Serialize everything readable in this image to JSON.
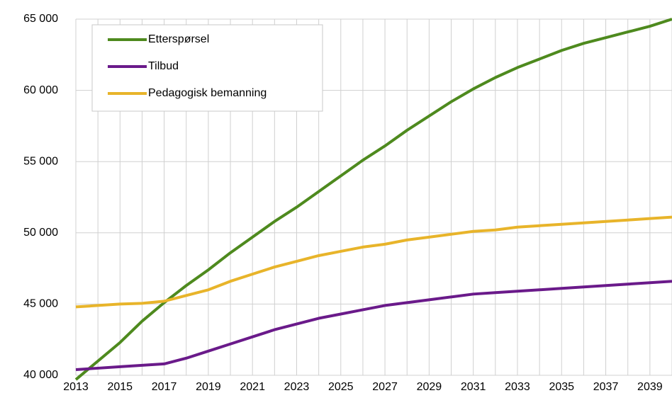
{
  "chart_data": {
    "type": "line",
    "categories": [
      "2013",
      null,
      "2015",
      null,
      "2017",
      null,
      "2019",
      null,
      "2021",
      null,
      "2023",
      null,
      "2025",
      null,
      "2027",
      null,
      "2029",
      null,
      "2031",
      null,
      "2033",
      null,
      "2035",
      null,
      "2037",
      null,
      "2039",
      null
    ],
    "series": [
      {
        "name": "Etterspørsel",
        "color": "#4e8a1e",
        "values": [
          39700,
          41000,
          42300,
          43800,
          45100,
          46300,
          47400,
          48600,
          49700,
          50800,
          51800,
          52900,
          54000,
          55100,
          56100,
          57200,
          58200,
          59200,
          60100,
          60900,
          61600,
          62200,
          62800,
          63300,
          63700,
          64100,
          64500,
          65000
        ]
      },
      {
        "name": "Tilbud",
        "color": "#6a1a8a",
        "values": [
          40400,
          40500,
          40600,
          40700,
          40800,
          41200,
          41700,
          42200,
          42700,
          43200,
          43600,
          44000,
          44300,
          44600,
          44900,
          45100,
          45300,
          45500,
          45700,
          45800,
          45900,
          46000,
          46100,
          46200,
          46300,
          46400,
          46500,
          46600
        ]
      },
      {
        "name": "Pedagogisk bemanning",
        "color": "#e8b42a",
        "values": [
          44800,
          44900,
          45000,
          45050,
          45200,
          45600,
          46000,
          46600,
          47100,
          47600,
          48000,
          48400,
          48700,
          49000,
          49200,
          49500,
          49700,
          49900,
          50100,
          50200,
          50400,
          50500,
          50600,
          50700,
          50800,
          50900,
          51000,
          51100
        ]
      }
    ],
    "ylim": [
      40000,
      65000
    ],
    "yticks": [
      {
        "value": 40000,
        "label": "40 000"
      },
      {
        "value": 45000,
        "label": "45 000"
      },
      {
        "value": 50000,
        "label": "50 000"
      },
      {
        "value": 55000,
        "label": "55 000"
      },
      {
        "value": 60000,
        "label": "60 000"
      },
      {
        "value": 65000,
        "label": "65 000"
      }
    ],
    "grid": true,
    "legend": "top-left"
  }
}
